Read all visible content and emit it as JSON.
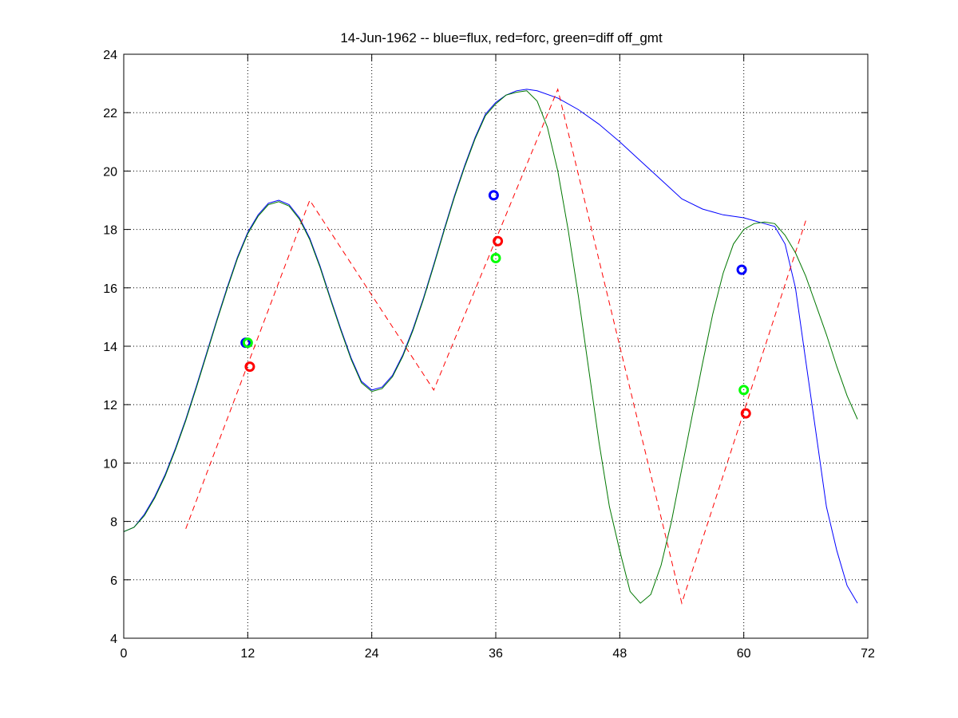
{
  "chart_data": {
    "type": "line",
    "title": "14-Jun-1962 -- blue=flux, red=forc, green=diff off_gmt",
    "xlabel": "",
    "ylabel": "",
    "xlim": [
      0,
      72
    ],
    "ylim": [
      4,
      24
    ],
    "xticks": [
      0,
      12,
      24,
      36,
      48,
      60,
      72
    ],
    "yticks": [
      4,
      6,
      8,
      10,
      12,
      14,
      16,
      18,
      20,
      22,
      24
    ],
    "grid": true,
    "legend": "none",
    "series": [
      {
        "color": "#0000ff",
        "style": "solid",
        "x": [
          0,
          1,
          2,
          3,
          4,
          5,
          6,
          7,
          8,
          9,
          10,
          11,
          12,
          13,
          14,
          15,
          16,
          17,
          18,
          19,
          20,
          21,
          22,
          23,
          24,
          25,
          26,
          27,
          28,
          29,
          30,
          31,
          32,
          33,
          34,
          35,
          36,
          37,
          38,
          39,
          40,
          42,
          44,
          46,
          48,
          50,
          52,
          54,
          56,
          58,
          60,
          61,
          62,
          63,
          64,
          65,
          66,
          67,
          68,
          69,
          70,
          71
        ],
        "y": [
          7.65,
          7.8,
          8.25,
          8.85,
          9.6,
          10.5,
          11.5,
          12.6,
          13.75,
          14.9,
          16.0,
          17.05,
          17.9,
          18.5,
          18.9,
          19.0,
          18.85,
          18.4,
          17.7,
          16.75,
          15.65,
          14.6,
          13.6,
          12.8,
          12.5,
          12.6,
          13.0,
          13.7,
          14.6,
          15.65,
          16.8,
          18.0,
          19.15,
          20.2,
          21.15,
          21.95,
          22.35,
          22.6,
          22.75,
          22.8,
          22.75,
          22.5,
          22.1,
          21.6,
          21.0,
          20.35,
          19.7,
          19.05,
          18.7,
          18.5,
          18.4,
          18.3,
          18.2,
          18.1,
          17.5,
          16.0,
          13.5,
          11.0,
          8.5,
          7.0,
          5.8,
          5.2
        ]
      },
      {
        "color": "#ff0000",
        "style": "dashed",
        "x": [
          6,
          18,
          30,
          42,
          54,
          66
        ],
        "y": [
          7.75,
          19.0,
          12.5,
          22.8,
          5.2,
          18.3
        ]
      },
      {
        "color": "#007700",
        "style": "solid",
        "x": [
          0,
          1,
          2,
          3,
          4,
          5,
          6,
          7,
          8,
          9,
          10,
          11,
          12,
          13,
          14,
          15,
          16,
          17,
          18,
          19,
          20,
          21,
          22,
          23,
          24,
          25,
          26,
          27,
          28,
          29,
          30,
          31,
          32,
          33,
          34,
          35,
          36,
          37,
          38,
          39,
          40,
          41,
          42,
          43,
          44,
          45,
          46,
          47,
          48,
          49,
          50,
          51,
          52,
          53,
          54,
          55,
          56,
          57,
          58,
          59,
          60,
          61,
          62,
          63,
          64,
          65,
          66,
          67,
          68,
          69,
          70,
          71
        ],
        "y": [
          7.65,
          7.8,
          8.2,
          8.8,
          9.55,
          10.45,
          11.45,
          12.55,
          13.7,
          14.85,
          15.95,
          17.0,
          17.85,
          18.45,
          18.85,
          18.95,
          18.8,
          18.35,
          17.65,
          16.7,
          15.6,
          14.55,
          13.55,
          12.75,
          12.45,
          12.55,
          12.95,
          13.65,
          14.55,
          15.6,
          16.75,
          17.95,
          19.1,
          20.15,
          21.1,
          21.9,
          22.3,
          22.6,
          22.7,
          22.75,
          22.4,
          21.5,
          20.0,
          18.0,
          15.7,
          13.2,
          10.7,
          8.5,
          7.0,
          5.6,
          5.2,
          5.5,
          6.5,
          8.0,
          9.8,
          11.6,
          13.4,
          15.1,
          16.5,
          17.5,
          18.0,
          18.2,
          18.25,
          18.2,
          17.8,
          17.2,
          16.4,
          15.4,
          14.4,
          13.3,
          12.3,
          11.5
        ]
      }
    ],
    "markers": [
      {
        "x": 11.8,
        "y": 14.12,
        "color": "#0000ff"
      },
      {
        "x": 12.0,
        "y": 14.12,
        "color": "#00ff00"
      },
      {
        "x": 12.2,
        "y": 13.3,
        "color": "#ff0000"
      },
      {
        "x": 35.8,
        "y": 19.17,
        "color": "#0000ff"
      },
      {
        "x": 36.2,
        "y": 17.6,
        "color": "#ff0000"
      },
      {
        "x": 36.0,
        "y": 17.02,
        "color": "#00ff00"
      },
      {
        "x": 59.8,
        "y": 16.62,
        "color": "#0000ff"
      },
      {
        "x": 60.0,
        "y": 12.5,
        "color": "#00ff00"
      },
      {
        "x": 60.2,
        "y": 11.7,
        "color": "#ff0000"
      }
    ]
  }
}
